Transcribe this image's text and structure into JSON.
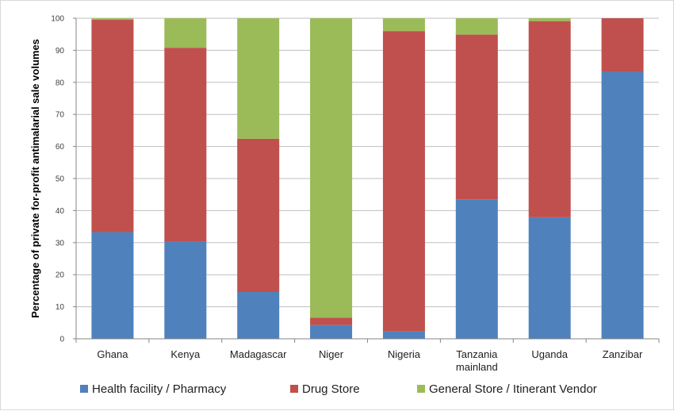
{
  "chart_data": {
    "type": "bar",
    "stacked": true,
    "categories": [
      "Ghana",
      "Kenya",
      "Madagascar",
      "Niger",
      "Nigeria",
      "Tanzania mainland",
      "Uganda",
      "Zanzibar"
    ],
    "category_lines": [
      [
        "Ghana"
      ],
      [
        "Kenya"
      ],
      [
        "Madagascar"
      ],
      [
        "Niger"
      ],
      [
        "Nigeria"
      ],
      [
        "Tanzania",
        "mainland"
      ],
      [
        "Uganda"
      ],
      [
        "Zanzibar"
      ]
    ],
    "series": [
      {
        "name": "Health facility / Pharmacy",
        "color": "#4f81bd",
        "values": [
          33.3,
          30.3,
          14.6,
          4.3,
          2.3,
          43.5,
          37.9,
          83.3
        ]
      },
      {
        "name": "Drug Store",
        "color": "#c0504d",
        "values": [
          66.2,
          60.5,
          47.8,
          2.3,
          93.7,
          51.4,
          61.2,
          16.7
        ]
      },
      {
        "name": "General Store / Itinerant Vendor",
        "color": "#9bbb59",
        "values": [
          0.5,
          9.2,
          37.6,
          93.4,
          4.0,
          5.1,
          0.9,
          0.0
        ]
      }
    ],
    "ylabel": "Percentage of private for-profit antimalarial sale volumes",
    "xlabel": "",
    "ylim": [
      0,
      100
    ],
    "yticks": [
      0,
      10,
      20,
      30,
      40,
      50,
      60,
      70,
      80,
      90,
      100
    ],
    "grid": true,
    "legend_position": "bottom"
  }
}
